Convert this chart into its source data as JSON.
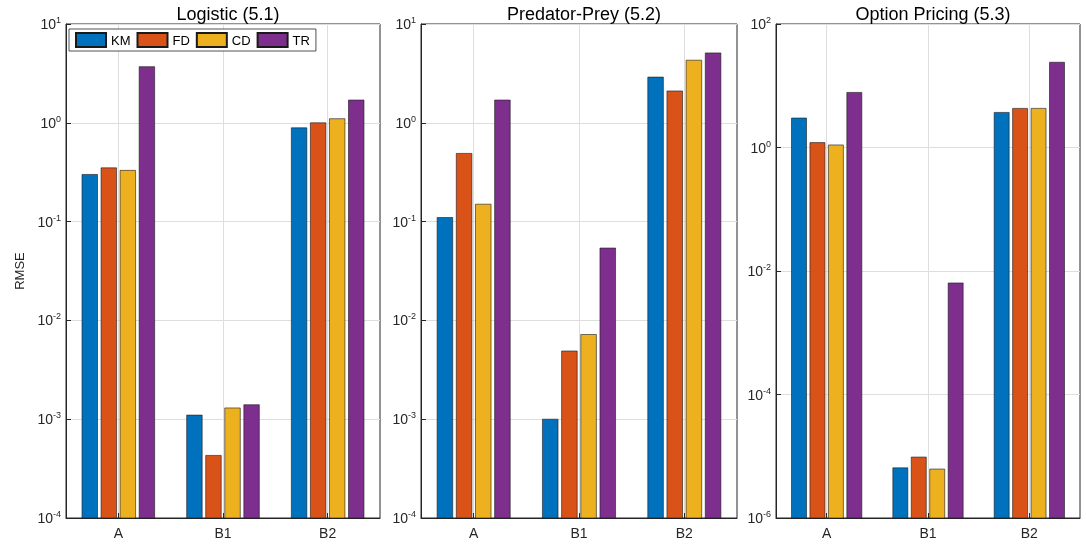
{
  "chart_data": [
    {
      "type": "bar",
      "title": "Logistic (5.1)",
      "ylabel": "RMSE",
      "categories": [
        "A",
        "B1",
        "B2"
      ],
      "log": true,
      "grid": true,
      "legend": "top left",
      "ylim": [
        0.0001,
        10
      ],
      "yticks": [
        {
          "value": 0.0001,
          "label": "10$^{-4}$"
        },
        {
          "value": 0.001,
          "label": "10$^{-3}$"
        },
        {
          "value": 0.01,
          "label": "10$^{-2}$"
        },
        {
          "value": 0.1,
          "label": "10$^{-1}$"
        },
        {
          "value": 1,
          "label": "10$^{0}$"
        },
        {
          "value": 10,
          "label": "10$^{1}$"
        }
      ],
      "series": [
        {
          "name": "KM",
          "color": "#0072bd",
          "values": [
            0.3,
            0.0011,
            0.89
          ]
        },
        {
          "name": "FD",
          "color": "#d95319",
          "values": [
            0.35,
            0.00043,
            1.0
          ]
        },
        {
          "name": "CD",
          "color": "#edb120",
          "values": [
            0.33,
            0.0013,
            1.1
          ]
        },
        {
          "name": "TR",
          "color": "#7e2f8e",
          "values": [
            3.7,
            0.0014,
            1.7
          ]
        }
      ]
    },
    {
      "type": "bar",
      "title": "Predator-Prey (5.2)",
      "categories": [
        "A",
        "B1",
        "B2"
      ],
      "log": true,
      "grid": true,
      "ylim": [
        0.0001,
        10
      ],
      "yticks": [
        {
          "value": 0.0001,
          "label": "10$^{-4}$"
        },
        {
          "value": 0.001,
          "label": "10$^{-3}$"
        },
        {
          "value": 0.01,
          "label": "10$^{-2}$"
        },
        {
          "value": 0.1,
          "label": "10$^{-1}$"
        },
        {
          "value": 1,
          "label": "10$^{0}$"
        },
        {
          "value": 10,
          "label": "10$^{1}$"
        }
      ],
      "series": [
        {
          "color": "#0072bd",
          "values": [
            0.11,
            0.001,
            2.9
          ]
        },
        {
          "color": "#d95319",
          "values": [
            0.49,
            0.0049,
            2.1
          ]
        },
        {
          "color": "#edb120",
          "values": [
            0.15,
            0.0072,
            4.3
          ]
        },
        {
          "color": "#7e2f8e",
          "values": [
            1.7,
            0.054,
            5.1
          ]
        }
      ]
    },
    {
      "type": "bar",
      "title": "Option Pricing (5.3)",
      "categories": [
        "A",
        "B1",
        "B2"
      ],
      "log": true,
      "grid": true,
      "ylim": [
        1e-06,
        100
      ],
      "yticks": [
        {
          "value": 1e-06,
          "label": "10$^{-6}$"
        },
        {
          "value": 0.0001,
          "label": "10$^{-4}$"
        },
        {
          "value": 0.01,
          "label": "10$^{-2}$"
        },
        {
          "value": 1,
          "label": "10$^{0}$"
        },
        {
          "value": 100,
          "label": "10$^{2}$"
        }
      ],
      "series": [
        {
          "color": "#0072bd",
          "values": [
            3.0,
            6.5e-06,
            3.7
          ]
        },
        {
          "color": "#d95319",
          "values": [
            1.2,
            9.7e-06,
            4.3
          ]
        },
        {
          "color": "#edb120",
          "values": [
            1.1,
            6.2e-06,
            4.3
          ]
        },
        {
          "color": "#7e2f8e",
          "values": [
            7.8,
            0.0064,
            24
          ]
        }
      ]
    }
  ]
}
